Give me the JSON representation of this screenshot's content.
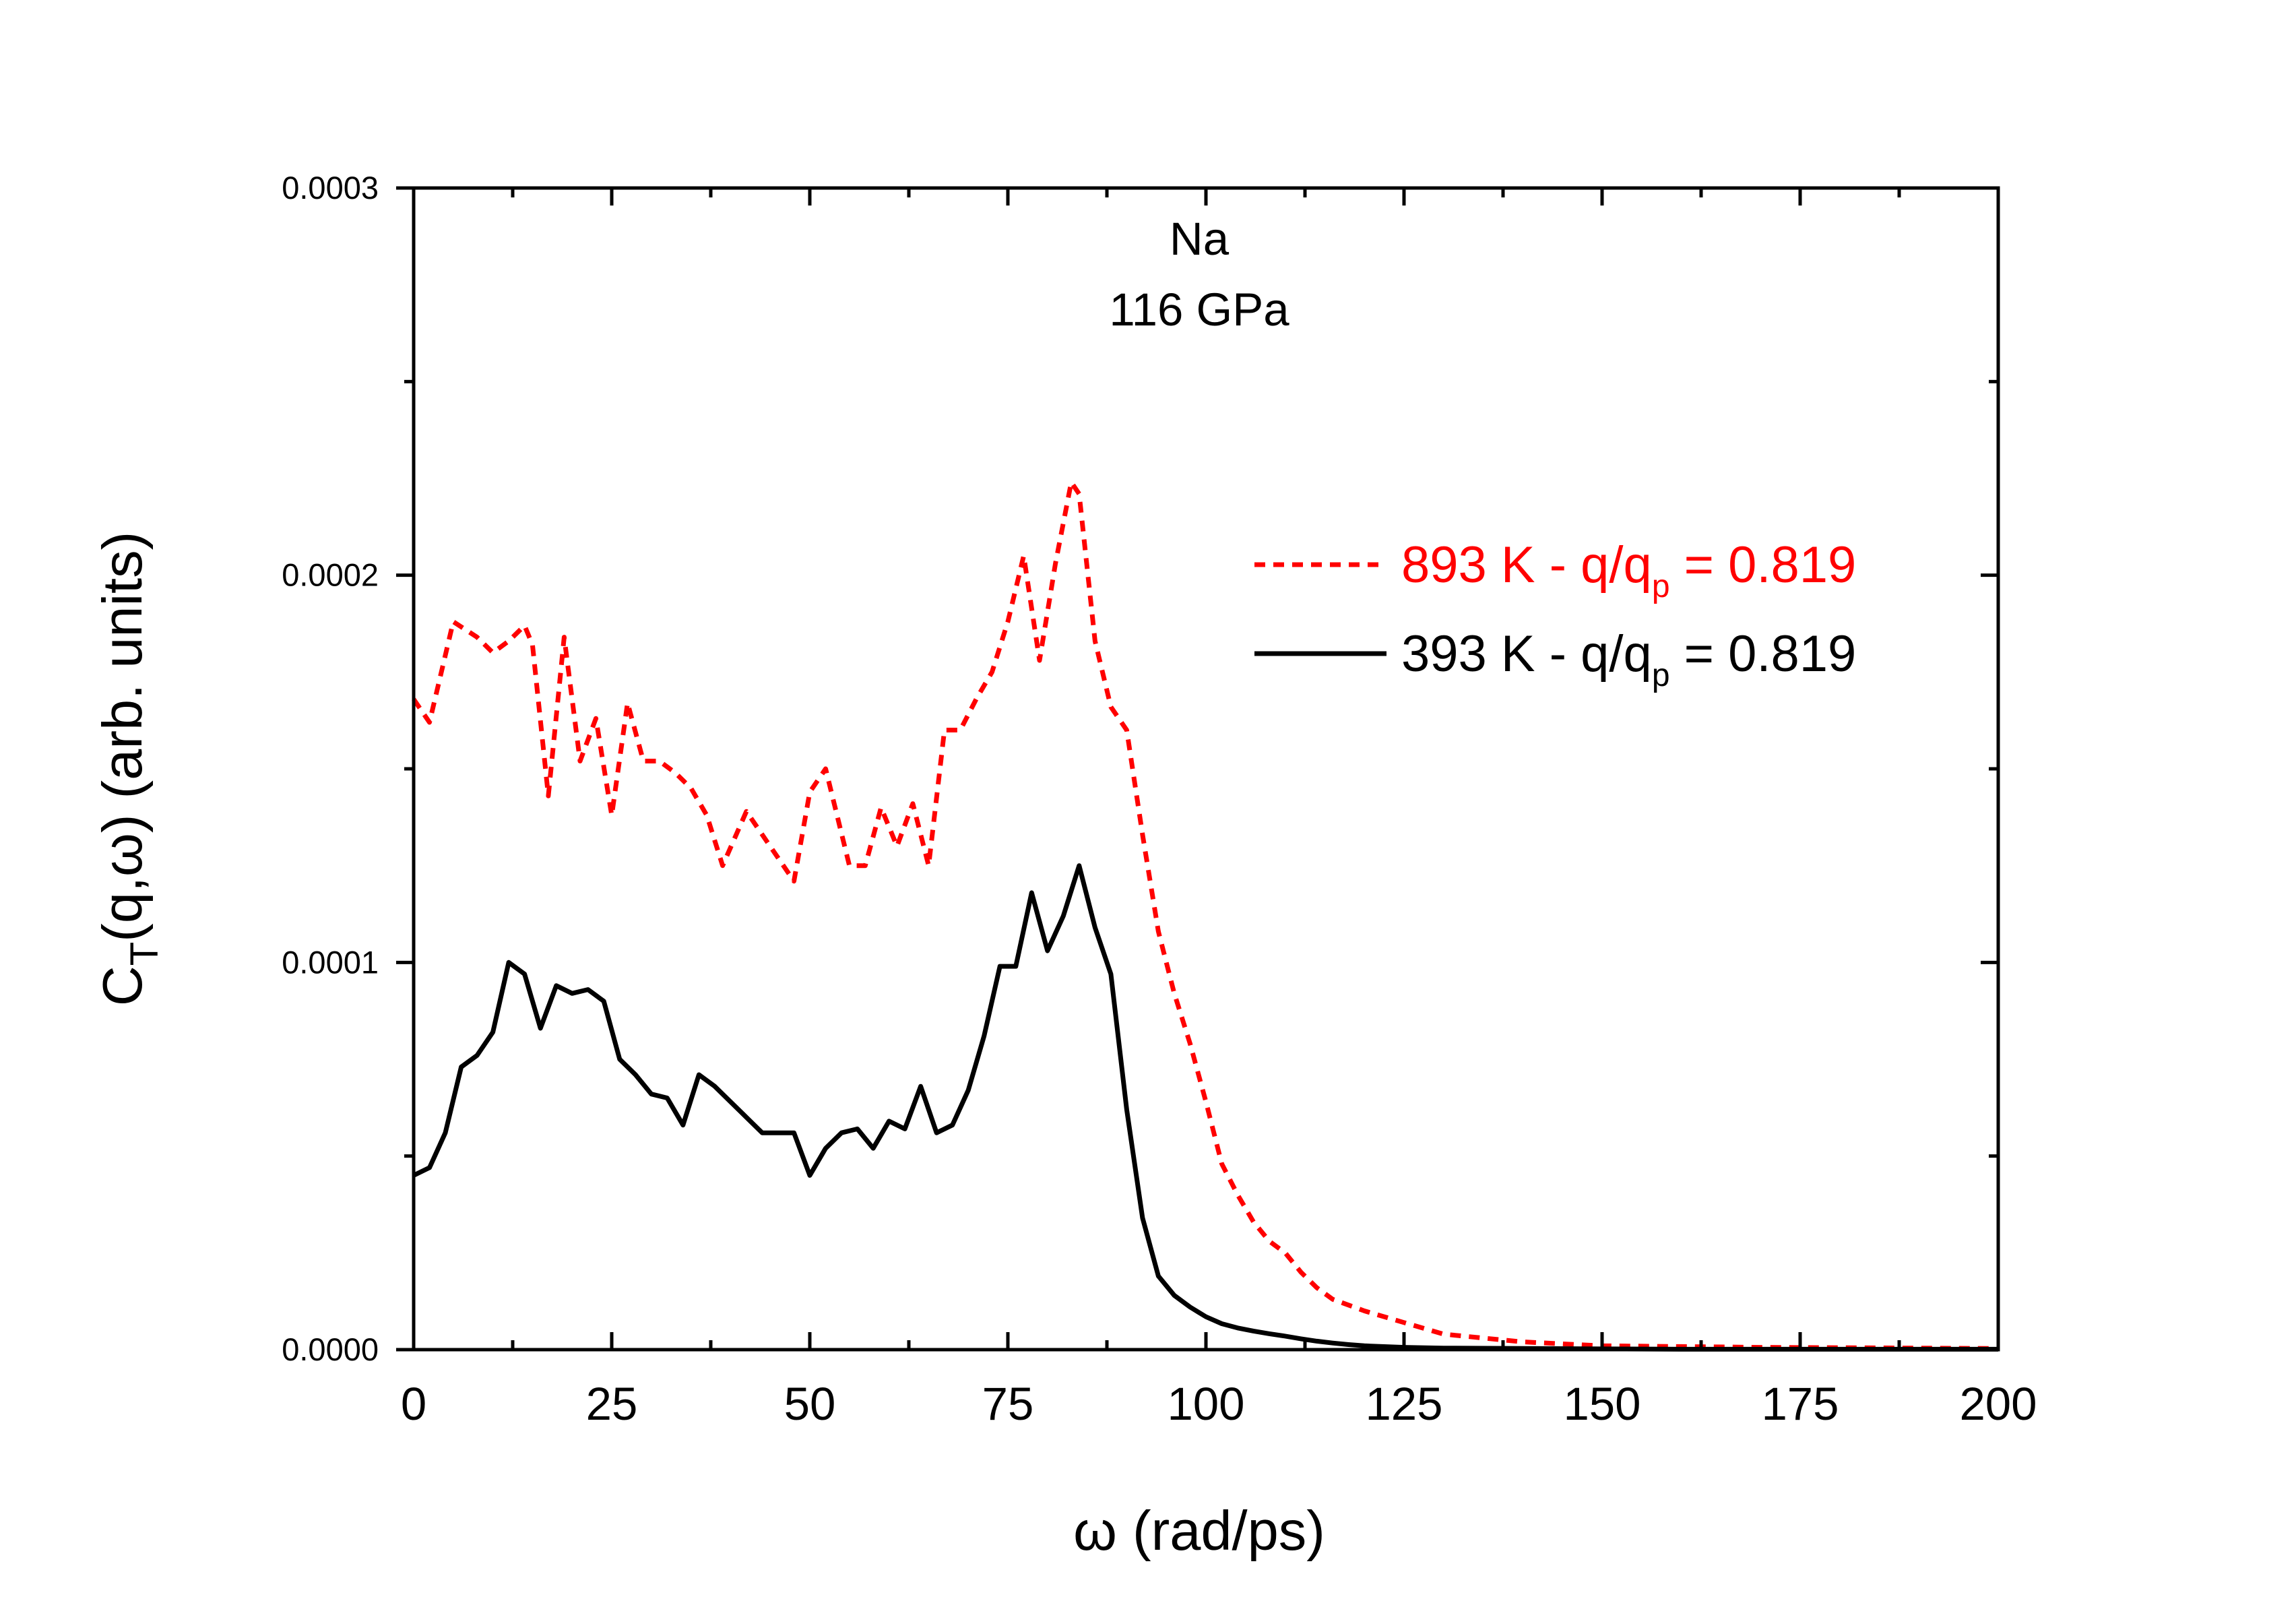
{
  "chart_data": {
    "type": "line",
    "title": "",
    "annotations": [
      "Na",
      "116 GPa"
    ],
    "xlabel": "ω (rad/ps)",
    "ylabel": {
      "prefix": "C",
      "subscript": "T",
      "suffix": "(q,ω) (arb. units)"
    },
    "xlim": [
      0,
      200
    ],
    "ylim": [
      0,
      0.0003
    ],
    "xticks": [
      0,
      25,
      50,
      75,
      100,
      125,
      150,
      175,
      200
    ],
    "xtick_labels": [
      "0",
      "25",
      "50",
      "75",
      "100",
      "125",
      "150",
      "175",
      "200"
    ],
    "yticks": [
      0,
      0.0001,
      0.0002,
      0.0003
    ],
    "ytick_labels": [
      "0.0000",
      "0.0001",
      "0.0002",
      "0.0003"
    ],
    "grid": false,
    "legend_position": "right-middle",
    "series": [
      {
        "name": "893 K - q/q_p = 0.819",
        "legend": {
          "prefix": "893 K - q/q",
          "subscript": "p",
          "suffix": " = 0.819"
        },
        "color": "#ff0000",
        "style": "dashed",
        "x": [
          0,
          2,
          5,
          8,
          10,
          12,
          14,
          15,
          17,
          19,
          21,
          23,
          25,
          27,
          29,
          31,
          33,
          35,
          37,
          39,
          42,
          44,
          48,
          50,
          52,
          55,
          57,
          59,
          61,
          63,
          65,
          67,
          69,
          71,
          73,
          75,
          77,
          79,
          81,
          83,
          84,
          86,
          88,
          90,
          92,
          94,
          96,
          98,
          100,
          102,
          104,
          106,
          108,
          110,
          112,
          114,
          116,
          120,
          125,
          130,
          135,
          140,
          145,
          150,
          160,
          170,
          180,
          190,
          200
        ],
        "y": [
          0.000168,
          0.000162,
          0.000188,
          0.000184,
          0.00018,
          0.000183,
          0.000187,
          0.000182,
          0.000143,
          0.000184,
          0.000152,
          0.000163,
          0.000138,
          0.000167,
          0.000152,
          0.000152,
          0.000149,
          0.000145,
          0.000138,
          0.000125,
          0.000139,
          0.000133,
          0.000121,
          0.000144,
          0.00015,
          0.000125,
          0.000125,
          0.00014,
          0.00013,
          0.000141,
          0.000125,
          0.00016,
          0.00016,
          0.000168,
          0.000175,
          0.000188,
          0.000205,
          0.000178,
          0.000203,
          0.000224,
          0.000221,
          0.000183,
          0.000166,
          0.00016,
          0.000133,
          0.000108,
          9.2e-05,
          7.9e-05,
          6.4e-05,
          4.8e-05,
          4e-05,
          3.3e-05,
          2.8e-05,
          2.5e-05,
          2e-05,
          1.6e-05,
          1.3e-05,
          1e-05,
          7e-06,
          4e-06,
          3e-06,
          2e-06,
          1.5e-06,
          1e-06,
          8e-07,
          6e-07,
          5e-07,
          4e-07,
          3e-07
        ]
      },
      {
        "name": "393 K - q/q_p = 0.819",
        "legend": {
          "prefix": "393 K - q/q",
          "subscript": "p",
          "suffix": " = 0.819"
        },
        "color": "#000000",
        "style": "solid",
        "x": [
          0,
          2,
          4,
          6,
          8,
          10,
          12,
          14,
          16,
          18,
          20,
          22,
          24,
          26,
          28,
          30,
          32,
          34,
          36,
          38,
          40,
          42,
          44,
          46,
          48,
          50,
          52,
          54,
          56,
          58,
          60,
          62,
          64,
          66,
          68,
          70,
          72,
          74,
          76,
          78,
          80,
          82,
          84,
          86,
          88,
          90,
          92,
          94,
          96,
          98,
          100,
          102,
          104,
          106,
          108,
          110,
          112,
          114,
          116,
          118,
          120,
          125,
          130,
          140,
          150,
          160,
          170,
          180,
          190,
          200
        ],
        "y": [
          4.5e-05,
          4.7e-05,
          5.6e-05,
          7.3e-05,
          7.6e-05,
          8.2e-05,
          0.0001,
          9.7e-05,
          8.3e-05,
          9.4e-05,
          9.2e-05,
          9.3e-05,
          9e-05,
          7.5e-05,
          7.1e-05,
          6.6e-05,
          6.5e-05,
          5.8e-05,
          7.1e-05,
          6.8e-05,
          6.4e-05,
          6e-05,
          5.6e-05,
          5.6e-05,
          5.6e-05,
          4.5e-05,
          5.2e-05,
          5.6e-05,
          5.7e-05,
          5.2e-05,
          5.9e-05,
          5.7e-05,
          6.8e-05,
          5.6e-05,
          5.8e-05,
          6.7e-05,
          8.1e-05,
          9.9e-05,
          9.9e-05,
          0.000118,
          0.000103,
          0.000112,
          0.000125,
          0.000109,
          9.7e-05,
          6.2e-05,
          3.4e-05,
          1.9e-05,
          1.4e-05,
          1.1e-05,
          8.5e-06,
          6.7e-06,
          5.6e-06,
          4.8e-06,
          4.1e-06,
          3.5e-06,
          2.8e-06,
          2.2e-06,
          1.7e-06,
          1.3e-06,
          1e-06,
          6e-07,
          4e-07,
          3e-07,
          2e-07,
          1e-07,
          1e-07,
          1e-07,
          1e-07,
          1e-07
        ]
      }
    ]
  }
}
